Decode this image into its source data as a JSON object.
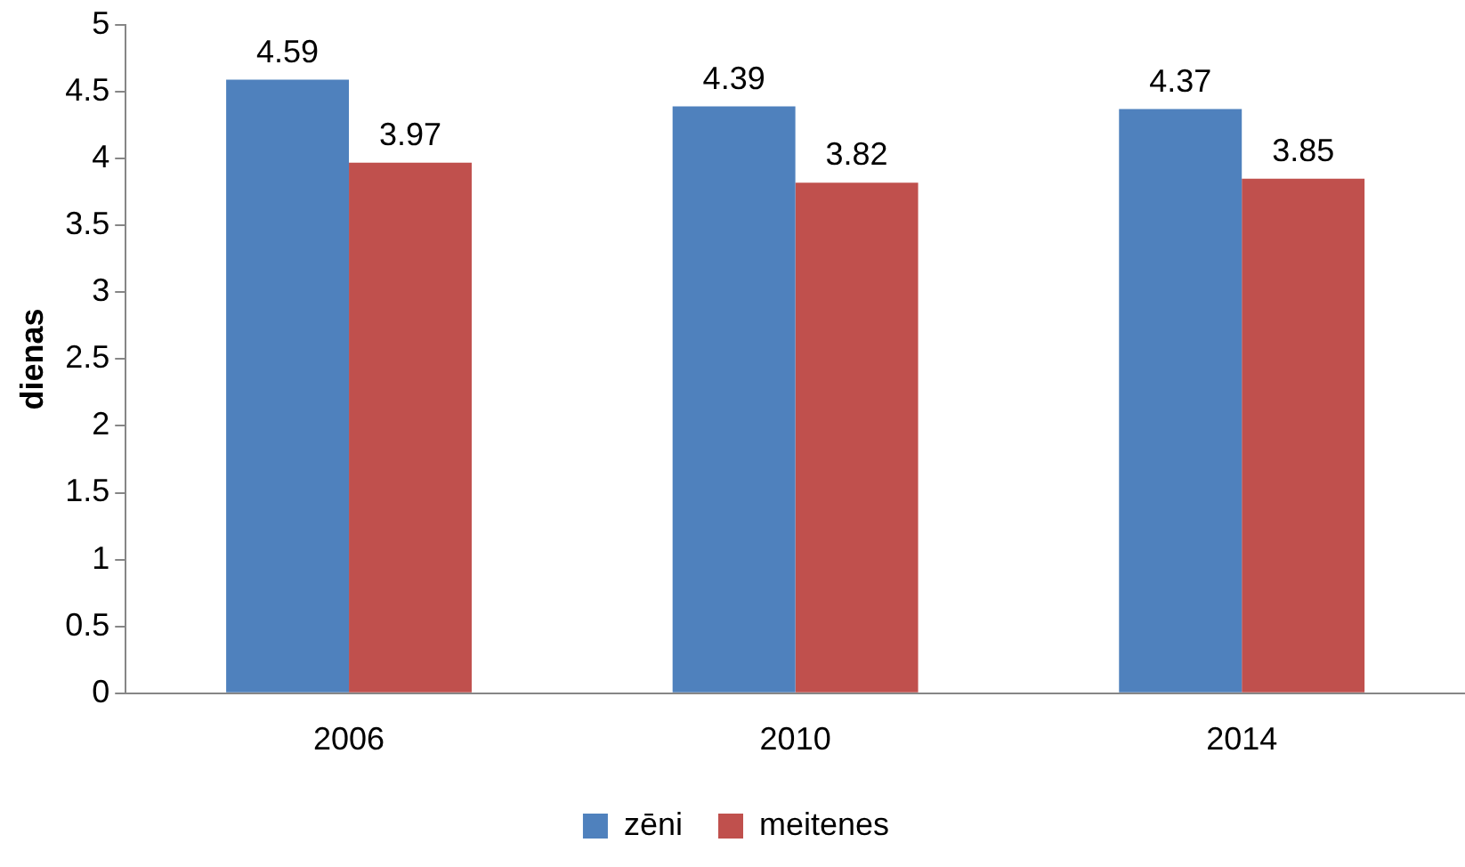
{
  "chart_data": {
    "type": "bar",
    "ylabel": "dienas",
    "categories": [
      "2006",
      "2010",
      "2014"
    ],
    "series": [
      {
        "name": "zēni",
        "color": "#4f81bd",
        "values": [
          4.59,
          4.39,
          4.37
        ]
      },
      {
        "name": "meitenes",
        "color": "#c0504d",
        "values": [
          3.97,
          3.82,
          3.85
        ]
      }
    ],
    "ylim": [
      0,
      5
    ],
    "yticks": [
      0,
      0.5,
      1,
      1.5,
      2,
      2.5,
      3,
      3.5,
      4,
      4.5,
      5
    ],
    "grid": false,
    "legend": "bottom",
    "data_labels": true
  }
}
